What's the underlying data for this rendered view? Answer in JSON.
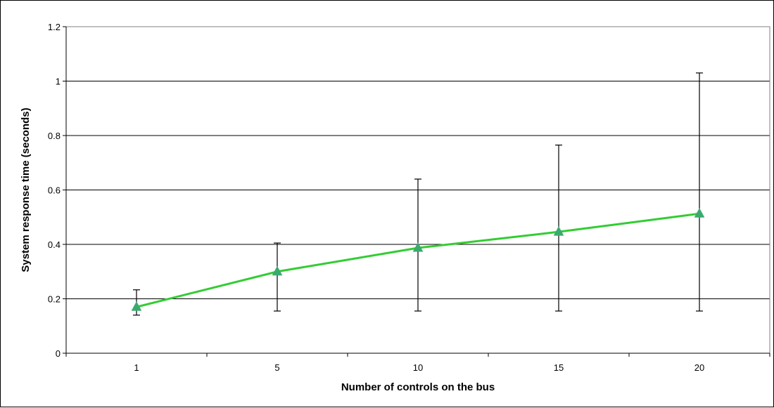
{
  "chart_data": {
    "type": "line",
    "title": "",
    "xlabel": "Number of controls on the bus",
    "ylabel": "System response time (seconds)",
    "categories": [
      "1",
      "5",
      "10",
      "15",
      "20"
    ],
    "ylim": [
      0,
      1.2
    ],
    "yticks": [
      "0",
      "0.2",
      "0.4",
      "0.6",
      "0.8",
      "1",
      "1.2"
    ],
    "grid": true,
    "legend": "none",
    "series": [
      {
        "values": [
          0.17,
          0.3,
          0.387,
          0.446,
          0.513
        ],
        "error_low": [
          0.14,
          0.155,
          0.155,
          0.155,
          0.155
        ],
        "error_high": [
          0.233,
          0.405,
          0.64,
          0.765,
          1.03
        ],
        "line_color": "#33cc33",
        "marker_color": "#3aaa70",
        "marker": "triangle"
      }
    ]
  }
}
